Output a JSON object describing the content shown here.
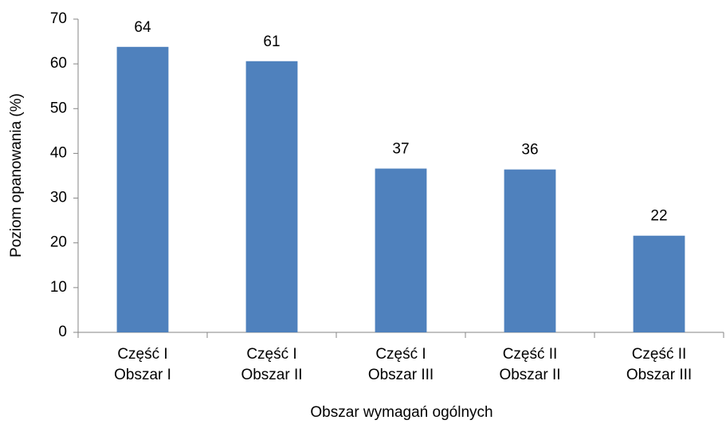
{
  "chart_data": {
    "type": "bar",
    "x_label": "Obszar wymagań ogólnych",
    "y_label": "Poziom opanowania (%)",
    "categories": [
      [
        "Część I",
        "Obszar I"
      ],
      [
        "Część I",
        "Obszar II"
      ],
      [
        "Część I",
        "Obszar III"
      ],
      [
        "Część II",
        "Obszar II"
      ],
      [
        "Część II",
        "Obszar III"
      ]
    ],
    "values": [
      63.8,
      60.6,
      36.6,
      36.4,
      21.6
    ],
    "value_labels": [
      "64",
      "61",
      "37",
      "36",
      "22"
    ],
    "color": "#4f81bd",
    "ylim": [
      0,
      70
    ],
    "yticks": [
      0,
      10,
      20,
      30,
      40,
      50,
      60,
      70
    ],
    "grid": false
  }
}
